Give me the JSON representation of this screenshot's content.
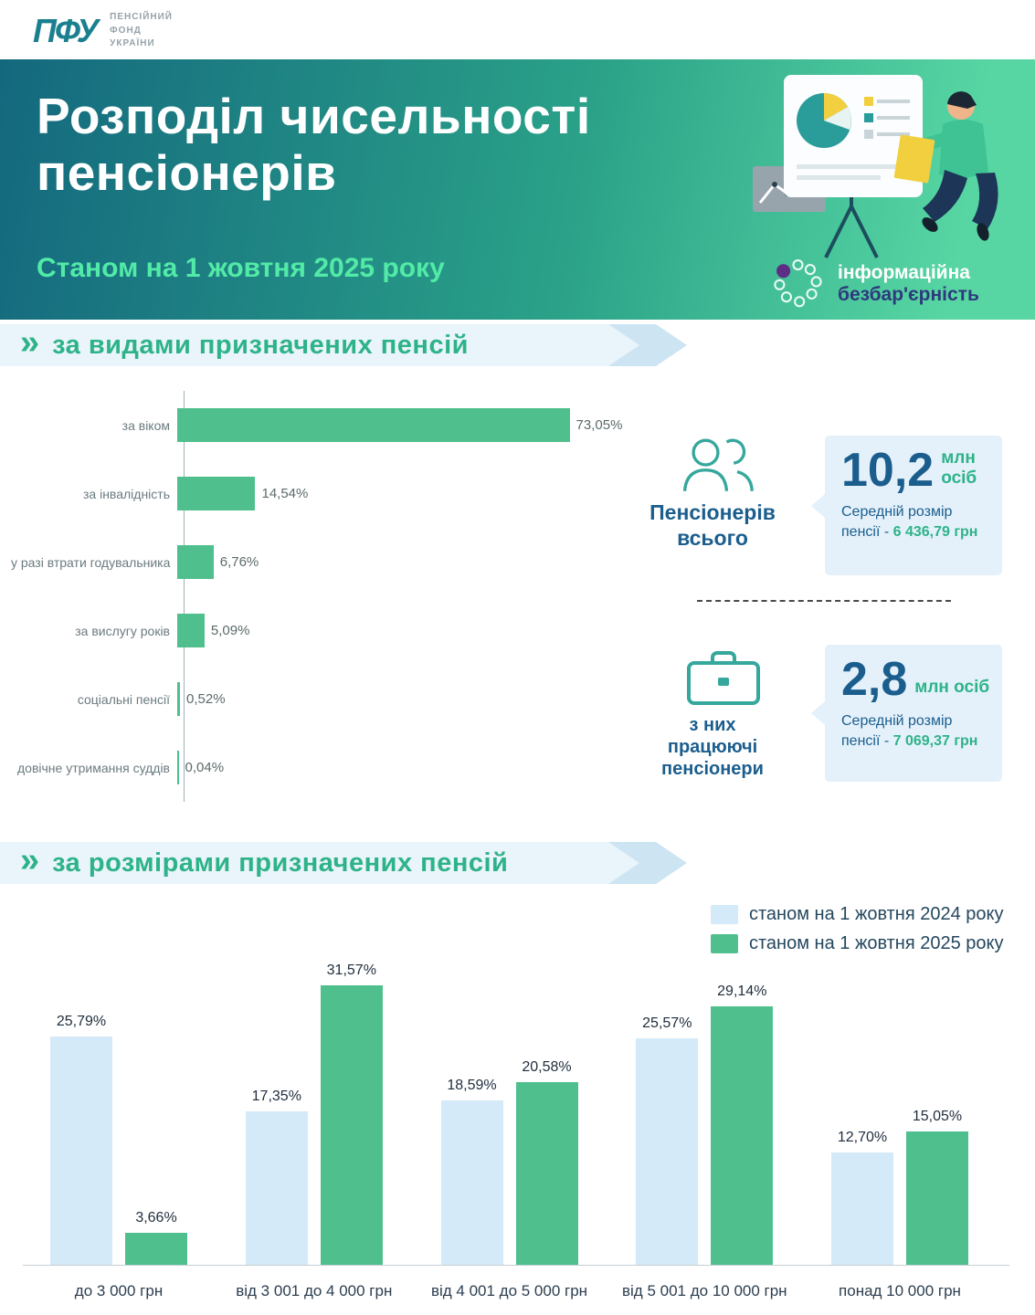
{
  "header": {
    "logo_abbr": "ПФУ",
    "logo_lines": [
      "ПЕНСІЙНИЙ",
      "ФОНД",
      "УКРАЇНИ"
    ]
  },
  "banner": {
    "title": "Розподіл чисельності пенсіонерів",
    "subtitle": "Станом на 1 жовтня 2025 року",
    "badge_line1": "інформаційна",
    "badge_line2": "безбар'єрність"
  },
  "sections": {
    "marker": "»",
    "by_type_title": "за видами призначених пенсій",
    "by_size_title": "за розмірами призначених пенсій"
  },
  "stats": {
    "total": {
      "label_line1": "Пенсіонерів",
      "label_line2": "всього",
      "value": "10,2",
      "unit": "млн осіб",
      "avg_line1": "Середній розмір",
      "avg_prefix": "пенсії - ",
      "avg_value": "6 436,79 грн"
    },
    "working": {
      "label_line1": "з них",
      "label_line2": "працюючі",
      "label_line3": "пенсіонери",
      "value": "2,8",
      "unit": "млн осіб",
      "avg_line1": "Середній розмір",
      "avg_prefix": "пенсії - ",
      "avg_value": "7 069,37 грн"
    }
  },
  "colors": {
    "banner_gradient_start": "#14687e",
    "banner_gradient_end": "#57d6a3",
    "accent_green": "#4fc08d",
    "accent_navy": "#1b5e8e",
    "section_band_blue": "#e9f4fb",
    "bar_2024_blue": "#d4eaf8",
    "bar_2025_green": "#4fc08d",
    "icon_teal": "#35a79c",
    "badge_purple": "#5d2e86"
  },
  "chart_data": [
    {
      "type": "bar",
      "orientation": "horizontal",
      "title": "за видами призначених пенсій",
      "categories": [
        "за віком",
        "за інвалідність",
        "у разі втрати годувальника",
        "за вислугу років",
        "соціальні пенсії",
        "довічне утримання суддів"
      ],
      "values": [
        73.05,
        14.54,
        6.76,
        5.09,
        0.52,
        0.04
      ],
      "value_labels": [
        "73,05%",
        "14,54%",
        "6,76%",
        "5,09%",
        "0,52%",
        "0,04%"
      ],
      "xlim": [
        0,
        100
      ],
      "grid": false,
      "bar_color": "#4fc08d"
    },
    {
      "type": "bar",
      "orientation": "vertical",
      "title": "за розмірами призначених пенсій",
      "categories": [
        "до 3 000 грн",
        "від 3 001 до 4 000 грн",
        "від 4 001 до 5 000 грн",
        "від 5 001 до 10 000 грн",
        "понад 10 000 грн"
      ],
      "series": [
        {
          "name": "станом на 1 жовтня 2024 року",
          "color": "#d4eaf8",
          "values": [
            25.79,
            17.35,
            18.59,
            25.57,
            12.7
          ],
          "value_labels": [
            "25,79%",
            "17,35%",
            "18,59%",
            "25,57%",
            "12,70%"
          ]
        },
        {
          "name": "станом на 1 жовтня 2025 року",
          "color": "#4fc08d",
          "values": [
            3.66,
            31.57,
            20.58,
            29.14,
            15.05
          ],
          "value_labels": [
            "3,66%",
            "31,57%",
            "20,58%",
            "29,14%",
            "15,05%"
          ]
        }
      ],
      "ylim": [
        0,
        35
      ],
      "legend_position": "top-right",
      "grid": false
    }
  ]
}
